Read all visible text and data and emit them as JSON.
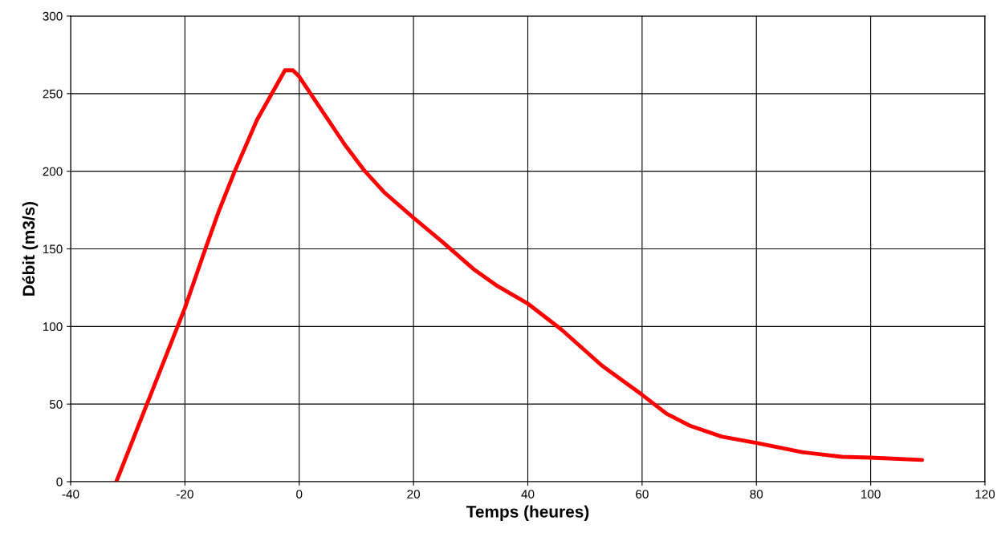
{
  "chart_data": {
    "type": "line",
    "xlabel": "Temps (heures)",
    "ylabel": "Débit (m3/s)",
    "x": [
      -32,
      -20,
      -16.9,
      -14.2,
      -11.4,
      -7.4,
      -2.5,
      -1.1,
      0,
      3.8,
      8,
      11.5,
      15,
      20,
      24.9,
      30.5,
      34.7,
      39.9,
      45.9,
      52.9,
      60,
      64.2,
      68.4,
      74,
      80,
      88,
      95,
      100,
      109
    ],
    "series": [
      {
        "color": "#ff0000",
        "values": [
          0,
          112,
          145,
          173,
          199,
          233,
          265,
          265,
          261,
          240,
          217,
          200,
          186,
          170,
          155,
          137,
          126,
          115,
          98,
          75,
          56,
          44,
          36,
          29,
          25,
          19,
          16,
          15.5,
          14
        ]
      }
    ],
    "xlim": [
      -40,
      120
    ],
    "xticks": [
      -40,
      -20,
      0,
      20,
      40,
      60,
      80,
      100,
      120
    ],
    "ylim": [
      0,
      300
    ],
    "yticks": [
      0,
      50,
      100,
      150,
      200,
      250,
      300
    ],
    "grid": true,
    "legend": false,
    "marker": "none",
    "line_style": "solid"
  }
}
